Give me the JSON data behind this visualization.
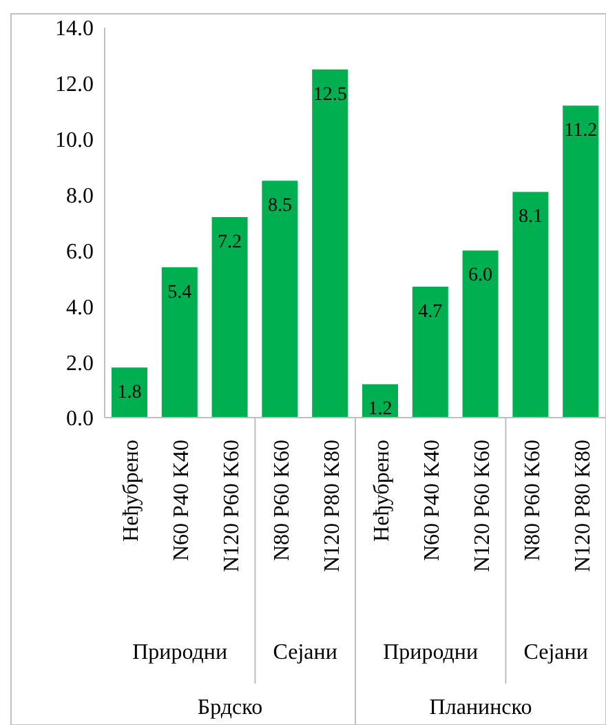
{
  "chart_data": {
    "type": "bar",
    "categories": [
      "Неђубрено",
      "N60 P40 K40",
      "N120 P60 K60",
      "N80 P60 K60",
      "N120 P80 K80",
      "Неђубрено",
      "N60 P40 K40",
      "N120 P60 K60",
      "N80 P60 K60",
      "N120 P80 K80"
    ],
    "values": [
      1.8,
      5.4,
      7.2,
      8.5,
      12.5,
      1.2,
      4.7,
      6.0,
      8.1,
      11.2
    ],
    "color": "#00b050",
    "ylim": [
      0,
      14
    ],
    "yticks": [
      {
        "value": 0,
        "label": "0.0"
      },
      {
        "value": 2,
        "label": "2.0"
      },
      {
        "value": 4,
        "label": "4.0"
      },
      {
        "value": 6,
        "label": "6.0"
      },
      {
        "value": 8,
        "label": "8.0"
      },
      {
        "value": 10,
        "label": "10.0"
      },
      {
        "value": 12,
        "label": "12.0"
      },
      {
        "value": 14,
        "label": "14.0"
      }
    ],
    "value_labels": [
      "1.8",
      "5.4",
      "7.2",
      "8.5",
      "12.5",
      "1.2",
      "4.7",
      "6.0",
      "8.1",
      "11.2"
    ],
    "annotations": [
      "Природни",
      "Сејани",
      "Природни",
      "Сејани",
      "Брдско",
      "Планинско"
    ]
  }
}
